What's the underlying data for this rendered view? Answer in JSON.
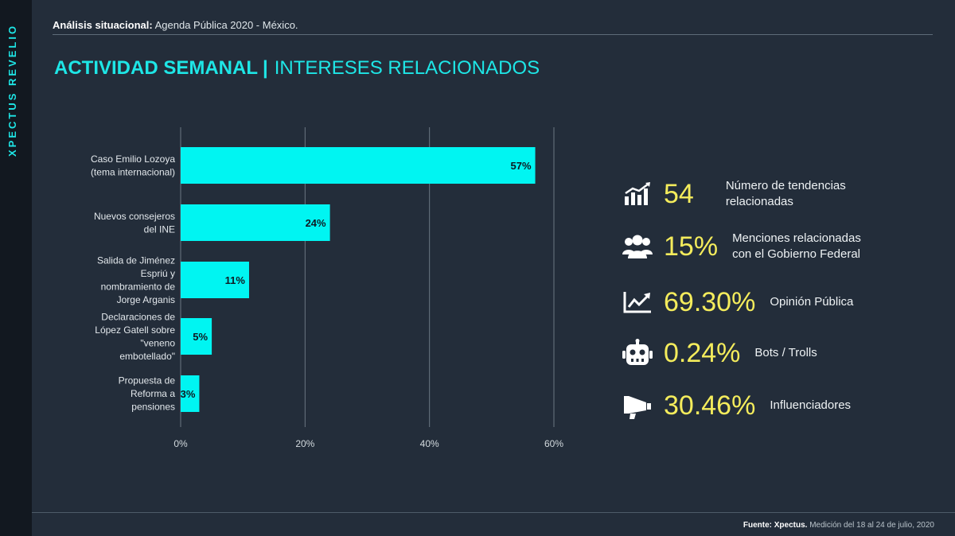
{
  "brand": "XPECTUS REVELIO",
  "header": {
    "bold": "Análisis situacional:",
    "text": " Agenda Pública 2020 - México."
  },
  "title": {
    "part1": "ACTIVIDAD SEMANAL",
    "separator": "|",
    "part2": "INTERESES RELACIONADOS"
  },
  "chart_data": {
    "type": "bar",
    "orientation": "horizontal",
    "categories": [
      [
        "Caso Emilio Lozoya",
        "(tema internacional)"
      ],
      [
        "Nuevos consejeros",
        "del INE"
      ],
      [
        "Salida de Jiménez",
        "Espriú y",
        "nombramiento de",
        "Jorge Arganis"
      ],
      [
        "Declaraciones de",
        "López Gatell sobre",
        "\"veneno",
        "embotellado\""
      ],
      [
        "Propuesta de",
        "Reforma a",
        "pensiones"
      ]
    ],
    "values": [
      57,
      24,
      11,
      5,
      3
    ],
    "value_labels": [
      "57%",
      "24%",
      "11%",
      "5%",
      "3%"
    ],
    "x_ticks": [
      0,
      20,
      40,
      60
    ],
    "x_tick_labels": [
      "0%",
      "20%",
      "40%",
      "60%"
    ],
    "xlim": [
      0,
      60
    ],
    "grid": true,
    "bar_color": "#00f5f2"
  },
  "stats": [
    {
      "icon": "bar-chart-icon",
      "value": "54",
      "label": "Número de tendencias\nrelacionadas"
    },
    {
      "icon": "users-icon",
      "value": "15%",
      "label": "Menciones relacionadas\ncon el Gobierno Federal"
    },
    {
      "icon": "trend-line-icon",
      "value": "69.30%",
      "label": "Opinión Pública"
    },
    {
      "icon": "robot-icon",
      "value": "0.24%",
      "label": "Bots / Trolls"
    },
    {
      "icon": "megaphone-icon",
      "value": "30.46%",
      "label": "Influenciadores"
    }
  ],
  "footer": {
    "bold": "Fuente: Xpectus.",
    "text": " Medición del 18 al 24 de julio, 2020"
  },
  "colors": {
    "accent": "#1ee6e6",
    "stat_number": "#f4ec5c",
    "background": "#232d3a"
  }
}
